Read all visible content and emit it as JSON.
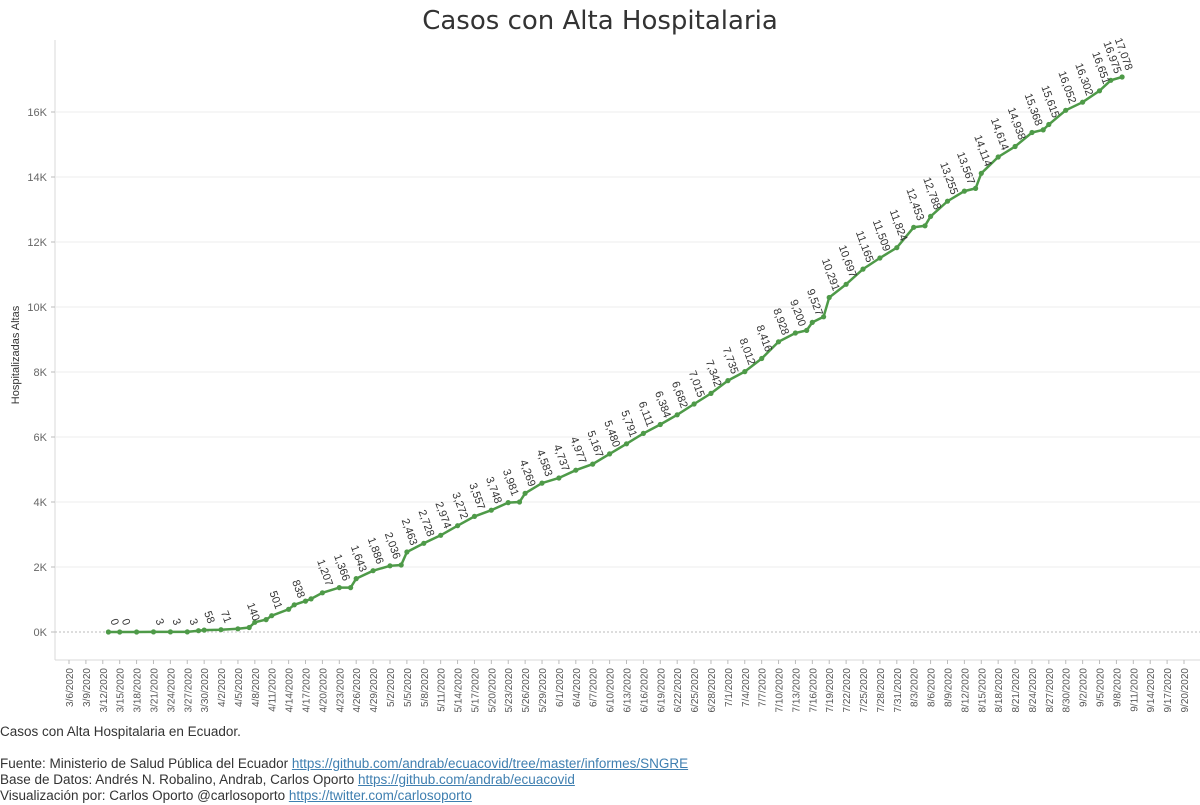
{
  "chart_data": {
    "type": "line",
    "title": "Casos con Alta Hospitalaria",
    "ylabel": "Hospitalizadas Altas",
    "xlabel": "",
    "ylim": [
      -900,
      17600
    ],
    "yticks": [
      0,
      2000,
      4000,
      6000,
      8000,
      10000,
      12000,
      14000,
      16000
    ],
    "ytick_labels": [
      "0K",
      "2K",
      "4K",
      "6K",
      "8K",
      "10K",
      "12K",
      "14K",
      "16K"
    ],
    "x_start": "2020-03-06",
    "x_end": "2020-09-20",
    "x_tick_labels": [
      "3/6/2020",
      "3/9/2020",
      "3/12/2020",
      "3/15/2020",
      "3/18/2020",
      "3/21/2020",
      "3/24/2020",
      "3/27/2020",
      "3/30/2020",
      "4/2/2020",
      "4/5/2020",
      "4/8/2020",
      "4/11/2020",
      "4/14/2020",
      "4/17/2020",
      "4/20/2020",
      "4/23/2020",
      "4/26/2020",
      "4/29/2020",
      "5/2/2020",
      "5/5/2020",
      "5/8/2020",
      "5/11/2020",
      "5/14/2020",
      "5/17/2020",
      "5/20/2020",
      "5/23/2020",
      "5/26/2020",
      "5/29/2020",
      "6/1/2020",
      "6/4/2020",
      "6/7/2020",
      "6/10/2020",
      "6/13/2020",
      "6/16/2020",
      "6/19/2020",
      "6/22/2020",
      "6/25/2020",
      "6/28/2020",
      "7/1/2020",
      "7/4/2020",
      "7/7/2020",
      "7/10/2020",
      "7/13/2020",
      "7/16/2020",
      "7/19/2020",
      "7/22/2020",
      "7/25/2020",
      "7/28/2020",
      "7/31/2020",
      "8/3/2020",
      "8/6/2020",
      "8/9/2020",
      "8/12/2020",
      "8/15/2020",
      "8/18/2020",
      "8/21/2020",
      "8/24/2020",
      "8/27/2020",
      "8/30/2020",
      "9/2/2020",
      "9/5/2020",
      "9/8/2020",
      "9/11/2020",
      "9/14/2020",
      "9/17/2020",
      "9/20/2020"
    ],
    "grid": true,
    "series": [
      {
        "color": "#4e9a48",
        "points": [
          [
            "2020-03-13",
            0
          ],
          [
            "2020-03-15",
            0
          ],
          [
            "2020-03-18",
            0
          ],
          [
            "2020-03-21",
            3
          ],
          [
            "2020-03-24",
            3
          ],
          [
            "2020-03-27",
            3
          ],
          [
            "2020-03-29",
            40
          ],
          [
            "2020-03-30",
            58
          ],
          [
            "2020-04-02",
            71
          ],
          [
            "2020-04-05",
            100
          ],
          [
            "2020-04-07",
            140
          ],
          [
            "2020-04-08",
            300
          ],
          [
            "2020-04-10",
            380
          ],
          [
            "2020-04-11",
            501
          ],
          [
            "2020-04-14",
            700
          ],
          [
            "2020-04-15",
            838
          ],
          [
            "2020-04-17",
            950
          ],
          [
            "2020-04-18",
            1020
          ],
          [
            "2020-04-20",
            1207
          ],
          [
            "2020-04-23",
            1366
          ],
          [
            "2020-04-25",
            1366
          ],
          [
            "2020-04-26",
            1643
          ],
          [
            "2020-04-29",
            1886
          ],
          [
            "2020-05-02",
            2036
          ],
          [
            "2020-05-04",
            2060
          ],
          [
            "2020-05-05",
            2463
          ],
          [
            "2020-05-08",
            2728
          ],
          [
            "2020-05-11",
            2974
          ],
          [
            "2020-05-14",
            3272
          ],
          [
            "2020-05-17",
            3557
          ],
          [
            "2020-05-20",
            3748
          ],
          [
            "2020-05-23",
            3981
          ],
          [
            "2020-05-25",
            4000
          ],
          [
            "2020-05-26",
            4269
          ],
          [
            "2020-05-29",
            4583
          ],
          [
            "2020-06-01",
            4737
          ],
          [
            "2020-06-04",
            4977
          ],
          [
            "2020-06-07",
            5167
          ],
          [
            "2020-06-10",
            5480
          ],
          [
            "2020-06-13",
            5791
          ],
          [
            "2020-06-16",
            6111
          ],
          [
            "2020-06-19",
            6384
          ],
          [
            "2020-06-22",
            6682
          ],
          [
            "2020-06-25",
            7015
          ],
          [
            "2020-06-28",
            7342
          ],
          [
            "2020-07-01",
            7735
          ],
          [
            "2020-07-04",
            8012
          ],
          [
            "2020-07-07",
            8416
          ],
          [
            "2020-07-10",
            8928
          ],
          [
            "2020-07-13",
            9200
          ],
          [
            "2020-07-15",
            9280
          ],
          [
            "2020-07-16",
            9527
          ],
          [
            "2020-07-18",
            9700
          ],
          [
            "2020-07-19",
            10291
          ],
          [
            "2020-07-22",
            10697
          ],
          [
            "2020-07-25",
            11165
          ],
          [
            "2020-07-28",
            11509
          ],
          [
            "2020-07-31",
            11824
          ],
          [
            "2020-08-03",
            12453
          ],
          [
            "2020-08-05",
            12500
          ],
          [
            "2020-08-06",
            12788
          ],
          [
            "2020-08-09",
            13255
          ],
          [
            "2020-08-12",
            13567
          ],
          [
            "2020-08-14",
            13650
          ],
          [
            "2020-08-15",
            14114
          ],
          [
            "2020-08-18",
            14614
          ],
          [
            "2020-08-21",
            14938
          ],
          [
            "2020-08-24",
            15368
          ],
          [
            "2020-08-26",
            15450
          ],
          [
            "2020-08-27",
            15615
          ],
          [
            "2020-08-30",
            16052
          ],
          [
            "2020-09-02",
            16302
          ],
          [
            "2020-09-05",
            16651
          ],
          [
            "2020-09-07",
            16975
          ],
          [
            "2020-09-09",
            17078
          ]
        ]
      }
    ],
    "data_labels": [
      [
        "2020-03-13",
        0,
        "0"
      ],
      [
        "2020-03-15",
        0,
        "0"
      ],
      [
        "2020-03-21",
        3,
        "3"
      ],
      [
        "2020-03-24",
        3,
        "3"
      ],
      [
        "2020-03-27",
        3,
        "3"
      ],
      [
        "2020-03-30",
        58,
        "58"
      ],
      [
        "2020-04-02",
        71,
        "71"
      ],
      [
        "2020-04-07",
        140,
        "140"
      ],
      [
        "2020-04-11",
        501,
        "501"
      ],
      [
        "2020-04-15",
        838,
        "838"
      ],
      [
        "2020-04-20",
        1207,
        "1,207"
      ],
      [
        "2020-04-23",
        1366,
        "1,366"
      ],
      [
        "2020-04-26",
        1643,
        "1,643"
      ],
      [
        "2020-04-29",
        1886,
        "1,886"
      ],
      [
        "2020-05-02",
        2036,
        "2,036"
      ],
      [
        "2020-05-05",
        2463,
        "2,463"
      ],
      [
        "2020-05-08",
        2728,
        "2,728"
      ],
      [
        "2020-05-11",
        2974,
        "2,974"
      ],
      [
        "2020-05-14",
        3272,
        "3,272"
      ],
      [
        "2020-05-17",
        3557,
        "3,557"
      ],
      [
        "2020-05-20",
        3748,
        "3,748"
      ],
      [
        "2020-05-23",
        3981,
        "3,981"
      ],
      [
        "2020-05-26",
        4269,
        "4,269"
      ],
      [
        "2020-05-29",
        4583,
        "4,583"
      ],
      [
        "2020-06-01",
        4737,
        "4,737"
      ],
      [
        "2020-06-04",
        4977,
        "4,977"
      ],
      [
        "2020-06-07",
        5167,
        "5,167"
      ],
      [
        "2020-06-10",
        5480,
        "5,480"
      ],
      [
        "2020-06-13",
        5791,
        "5,791"
      ],
      [
        "2020-06-16",
        6111,
        "6,111"
      ],
      [
        "2020-06-19",
        6384,
        "6,384"
      ],
      [
        "2020-06-22",
        6682,
        "6,682"
      ],
      [
        "2020-06-25",
        7015,
        "7,015"
      ],
      [
        "2020-06-28",
        7342,
        "7,342"
      ],
      [
        "2020-07-01",
        7735,
        "7,735"
      ],
      [
        "2020-07-04",
        8012,
        "8,012"
      ],
      [
        "2020-07-07",
        8416,
        "8,416"
      ],
      [
        "2020-07-10",
        8928,
        "8,928"
      ],
      [
        "2020-07-13",
        9200,
        "9,200"
      ],
      [
        "2020-07-16",
        9527,
        "9,527"
      ],
      [
        "2020-07-19",
        10291,
        "10,291"
      ],
      [
        "2020-07-22",
        10697,
        "10,697"
      ],
      [
        "2020-07-25",
        11165,
        "11,165"
      ],
      [
        "2020-07-28",
        11509,
        "11,509"
      ],
      [
        "2020-07-31",
        11824,
        "11,824"
      ],
      [
        "2020-08-03",
        12453,
        "12,453"
      ],
      [
        "2020-08-06",
        12788,
        "12,788"
      ],
      [
        "2020-08-09",
        13255,
        "13,255"
      ],
      [
        "2020-08-12",
        13567,
        "13,567"
      ],
      [
        "2020-08-15",
        14114,
        "14,114"
      ],
      [
        "2020-08-18",
        14614,
        "14,614"
      ],
      [
        "2020-08-21",
        14938,
        "14,938"
      ],
      [
        "2020-08-24",
        15368,
        "15,368"
      ],
      [
        "2020-08-27",
        15615,
        "15,615"
      ],
      [
        "2020-08-30",
        16052,
        "16,052"
      ],
      [
        "2020-09-02",
        16302,
        "16,302"
      ],
      [
        "2020-09-05",
        16651,
        "16,651"
      ],
      [
        "2020-09-07",
        16975,
        "16,975"
      ],
      [
        "2020-09-09",
        17078,
        "17,078"
      ]
    ]
  },
  "footer": {
    "caption": "Casos con Alta Hospitalaria en Ecuador.",
    "source_prefix": "Fuente: Ministerio de Salud Pública del Ecuador ",
    "source_link": "https://github.com/andrab/ecuacovid/tree/master/informes/SNGRE",
    "database_prefix": "Base de Datos: Andrés N. Robalino, Andrab, Carlos Oporto ",
    "database_link": "https://github.com/andrab/ecuacovid",
    "viz_prefix": "Visualización por: Carlos Oporto @carlosoporto ",
    "viz_link": "https://twitter.com/carlosoporto"
  }
}
